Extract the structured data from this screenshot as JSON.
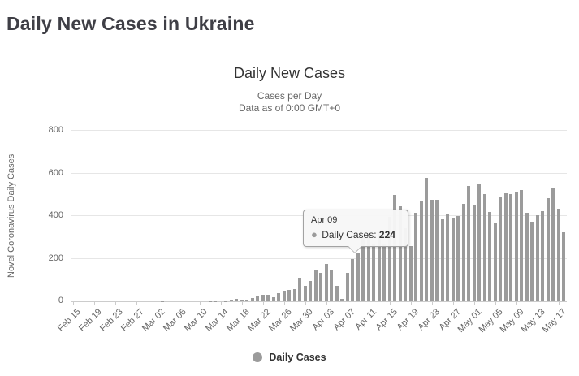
{
  "page": {
    "title": "Daily New Cases in Ukraine"
  },
  "chart": {
    "title": "Daily New Cases",
    "subtitle_line1": "Cases per Day",
    "subtitle_line2": "Data as of 0:00 GMT+0",
    "y_axis_title": "Novel Coronavirus Daily Cases",
    "legend_label": "Daily Cases",
    "colors": {
      "bar": "#9b9b9b",
      "grid": "#e6e6e6",
      "axis_line": "#cccccc",
      "labels": "#666666",
      "title": "#333333"
    }
  },
  "tooltip": {
    "date": "Apr 09",
    "series_label": "Daily Cases:",
    "value": "224"
  },
  "chart_data": {
    "type": "bar",
    "title": "Daily New Cases",
    "subtitle": [
      "Cases per Day",
      "Data as of 0:00 GMT+0"
    ],
    "xlabel": "",
    "ylabel": "Novel Coronavirus Daily Cases",
    "ylim": [
      0,
      800
    ],
    "yticks": [
      0,
      200,
      400,
      600,
      800
    ],
    "grid": "horizontal",
    "legend": [
      "Daily Cases"
    ],
    "legend_position": "bottom",
    "x_tick_every": 4,
    "x_tick_labels": [
      "Feb 15",
      "Feb 19",
      "Feb 23",
      "Feb 27",
      "Mar 02",
      "Mar 06",
      "Mar 10",
      "Mar 14",
      "Mar 18",
      "Mar 22",
      "Mar 26",
      "Mar 30",
      "Apr 03",
      "Apr 07",
      "Apr 11",
      "Apr 15",
      "Apr 19",
      "Apr 23",
      "Apr 27",
      "May 01",
      "May 05",
      "May 09",
      "May 13",
      "May 17"
    ],
    "tooltip_point": {
      "category": "Apr 09",
      "value": 224
    },
    "categories": [
      "Feb 15",
      "Feb 16",
      "Feb 17",
      "Feb 18",
      "Feb 19",
      "Feb 20",
      "Feb 21",
      "Feb 22",
      "Feb 23",
      "Feb 24",
      "Feb 25",
      "Feb 26",
      "Feb 27",
      "Feb 28",
      "Feb 29",
      "Mar 01",
      "Mar 02",
      "Mar 03",
      "Mar 04",
      "Mar 05",
      "Mar 06",
      "Mar 07",
      "Mar 08",
      "Mar 09",
      "Mar 10",
      "Mar 11",
      "Mar 12",
      "Mar 13",
      "Mar 14",
      "Mar 15",
      "Mar 16",
      "Mar 17",
      "Mar 18",
      "Mar 19",
      "Mar 20",
      "Mar 21",
      "Mar 22",
      "Mar 23",
      "Mar 24",
      "Mar 25",
      "Mar 26",
      "Mar 27",
      "Mar 28",
      "Mar 29",
      "Mar 30",
      "Mar 31",
      "Apr 01",
      "Apr 02",
      "Apr 03",
      "Apr 04",
      "Apr 05",
      "Apr 06",
      "Apr 07",
      "Apr 08",
      "Apr 09",
      "Apr 10",
      "Apr 11",
      "Apr 12",
      "Apr 13",
      "Apr 14",
      "Apr 15",
      "Apr 16",
      "Apr 17",
      "Apr 18",
      "Apr 19",
      "Apr 20",
      "Apr 21",
      "Apr 22",
      "Apr 23",
      "Apr 24",
      "Apr 25",
      "Apr 26",
      "Apr 27",
      "Apr 28",
      "Apr 29",
      "Apr 30",
      "May 01",
      "May 02",
      "May 03",
      "May 04",
      "May 05",
      "May 06",
      "May 07",
      "May 08",
      "May 09",
      "May 10",
      "May 11",
      "May 12",
      "May 13",
      "May 14",
      "May 15",
      "May 16",
      "May 17",
      "May 18"
    ],
    "values": [
      0,
      0,
      0,
      0,
      0,
      0,
      0,
      0,
      0,
      0,
      0,
      0,
      0,
      0,
      0,
      0,
      0,
      1,
      0,
      0,
      0,
      0,
      0,
      0,
      0,
      0,
      1,
      1,
      0,
      1,
      4,
      10,
      7,
      7,
      15,
      26,
      32,
      30,
      19,
      37,
      48,
      55,
      57,
      109,
      73,
      97,
      149,
      135,
      175,
      143,
      74,
      11,
      135,
      200,
      224,
      311,
      308,
      266,
      325,
      270,
      397,
      501,
      444,
      343,
      261,
      415,
      467,
      578,
      477,
      475,
      385,
      410,
      392,
      401,
      456,
      540,
      455,
      550,
      502,
      418,
      366,
      487,
      507,
      504,
      515,
      522,
      416,
      375,
      402,
      422,
      483,
      528,
      433,
      325
    ]
  }
}
